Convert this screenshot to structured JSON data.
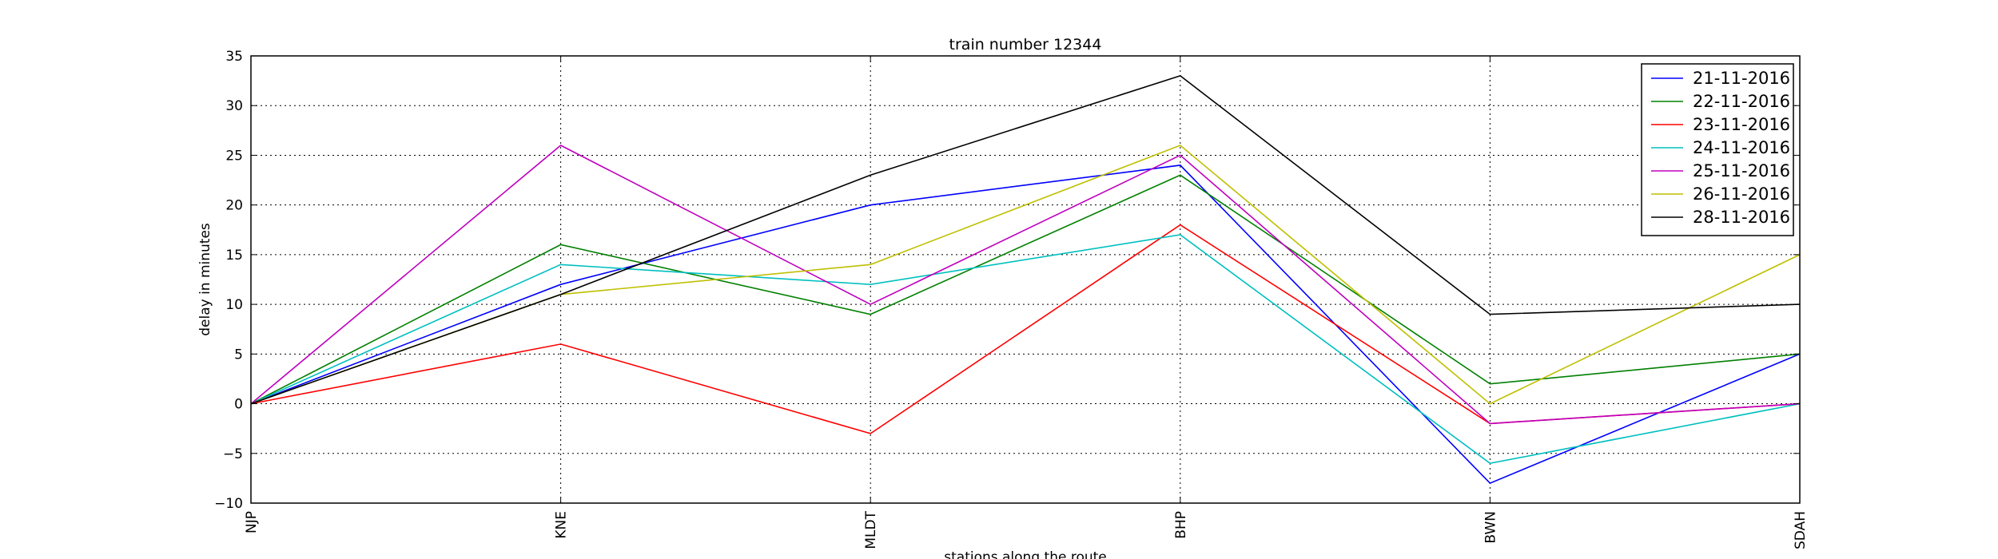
{
  "chart_data": {
    "type": "line",
    "title": "train number 12344",
    "xlabel": "stations along the route",
    "ylabel": "delay in minutes",
    "categories": [
      "NJP",
      "KNE",
      "MLDT",
      "BHP",
      "BWN",
      "SDAH"
    ],
    "ylim": [
      -10,
      35
    ],
    "yticks": [
      -10,
      -5,
      0,
      5,
      10,
      15,
      20,
      25,
      30,
      35
    ],
    "grid": true,
    "legend_position": "top-right",
    "series": [
      {
        "name": "21-11-2016",
        "color": "#0000ff",
        "values": [
          0,
          12,
          20,
          24,
          -8,
          5
        ]
      },
      {
        "name": "22-11-2016",
        "color": "#008000",
        "values": [
          0,
          16,
          9,
          23,
          2,
          5
        ]
      },
      {
        "name": "23-11-2016",
        "color": "#ff0000",
        "values": [
          0,
          6,
          -3,
          18,
          -2,
          0
        ]
      },
      {
        "name": "24-11-2016",
        "color": "#00bfbf",
        "values": [
          0,
          14,
          12,
          17,
          -6,
          0
        ]
      },
      {
        "name": "25-11-2016",
        "color": "#bf00bf",
        "values": [
          0,
          26,
          10,
          25,
          -2,
          0
        ]
      },
      {
        "name": "26-11-2016",
        "color": "#bfbf00",
        "values": [
          0,
          11,
          14,
          26,
          0,
          15
        ]
      },
      {
        "name": "28-11-2016",
        "color": "#000000",
        "values": [
          0,
          11,
          23,
          33,
          9,
          10
        ]
      }
    ]
  }
}
